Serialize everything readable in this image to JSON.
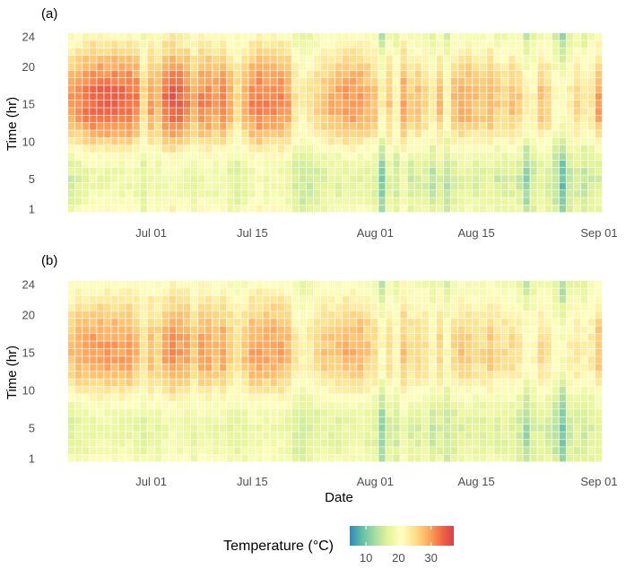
{
  "chart_data": [
    {
      "type": "heatmap",
      "panel_label": "(a)",
      "xlabel": "",
      "ylabel": "Time (hr)",
      "x_start": "2023-06-20",
      "x_end": "2023-09-01",
      "x_ticks": [
        "Jul 01",
        "Jul 15",
        "Aug 01",
        "Aug 15",
        "Sep 01"
      ],
      "x_tick_dates": [
        "2023-07-01",
        "2023-07-15",
        "2023-08-01",
        "2023-08-15",
        "2023-09-01"
      ],
      "y_ticks": [
        1,
        5,
        10,
        15,
        20,
        24
      ],
      "ylim": [
        1,
        24
      ],
      "value": "temperature",
      "profile": {
        "min_hour": 5,
        "max_hour": 15,
        "daily_mean_c": [
          23,
          24,
          25,
          26,
          26,
          26,
          26,
          26,
          26,
          25,
          21,
          24,
          23,
          26,
          27,
          26,
          25,
          23,
          25,
          25,
          24,
          25,
          23,
          21,
          23,
          25,
          26,
          25,
          25,
          25,
          24,
          20,
          19,
          20,
          21,
          22,
          23,
          23,
          24,
          24,
          24,
          23,
          22,
          17,
          22,
          19,
          24,
          21,
          22,
          21,
          19,
          22,
          18,
          22,
          23,
          23,
          22,
          22,
          23,
          21,
          21,
          22,
          21,
          17,
          19,
          22,
          21,
          18,
          15,
          19,
          21,
          19,
          20
        ],
        "daily_range_c": [
          14,
          15,
          15,
          15,
          16,
          16,
          16,
          16,
          15,
          14,
          9,
          12,
          11,
          14,
          15,
          15,
          14,
          12,
          13,
          13,
          12,
          13,
          12,
          9,
          12,
          13,
          13,
          13,
          13,
          13,
          12,
          9,
          8,
          9,
          10,
          11,
          12,
          13,
          13,
          13,
          13,
          12,
          11,
          12,
          10,
          8,
          11,
          11,
          12,
          10,
          10,
          12,
          8,
          12,
          13,
          12,
          11,
          11,
          12,
          11,
          10,
          11,
          11,
          11,
          7,
          11,
          10,
          8,
          12,
          9,
          10,
          9,
          8
        ]
      }
    },
    {
      "type": "heatmap",
      "panel_label": "(b)",
      "xlabel": "Date",
      "ylabel": "Time (hr)",
      "x_start": "2023-06-20",
      "x_end": "2023-09-01",
      "x_ticks": [
        "Jul 01",
        "Jul 15",
        "Aug 01",
        "Aug 15",
        "Sep 01"
      ],
      "x_tick_dates": [
        "2023-07-01",
        "2023-07-15",
        "2023-08-01",
        "2023-08-15",
        "2023-09-01"
      ],
      "y_ticks": [
        1,
        5,
        10,
        15,
        20,
        24
      ],
      "ylim": [
        1,
        24
      ],
      "value": "temperature",
      "profile": {
        "min_hour": 5,
        "max_hour": 15,
        "daily_mean_c": [
          22,
          23,
          23,
          24,
          24,
          24,
          24,
          24,
          24,
          23,
          21,
          23,
          22,
          24,
          25,
          24,
          24,
          22,
          24,
          24,
          23,
          24,
          22,
          21,
          22,
          24,
          24,
          24,
          24,
          24,
          23,
          20,
          19,
          20,
          21,
          22,
          22,
          22,
          23,
          23,
          23,
          22,
          21,
          17,
          21,
          19,
          23,
          21,
          21,
          21,
          19,
          21,
          18,
          21,
          22,
          22,
          21,
          21,
          22,
          21,
          21,
          21,
          20,
          17,
          19,
          21,
          20,
          18,
          15,
          19,
          20,
          19,
          20
        ],
        "daily_range_c": [
          11,
          12,
          12,
          12,
          12,
          12,
          12,
          12,
          12,
          11,
          8,
          10,
          9,
          11,
          12,
          12,
          11,
          10,
          11,
          11,
          10,
          11,
          10,
          8,
          10,
          11,
          11,
          11,
          11,
          11,
          10,
          8,
          7,
          8,
          9,
          10,
          10,
          11,
          11,
          11,
          11,
          10,
          9,
          10,
          9,
          7,
          9,
          9,
          10,
          8,
          8,
          10,
          7,
          10,
          11,
          10,
          9,
          9,
          10,
          9,
          8,
          9,
          9,
          9,
          6,
          9,
          8,
          7,
          10,
          8,
          8,
          8,
          7
        ]
      }
    }
  ],
  "legend": {
    "title": "Temperature (°C)",
    "ticks": [
      10,
      20,
      30
    ],
    "range": [
      5,
      37
    ],
    "colors": [
      "#3288bd",
      "#66c2a5",
      "#abdda4",
      "#e6f598",
      "#ffffbf",
      "#fee08b",
      "#fdae61",
      "#f46d43",
      "#d53e4f"
    ]
  }
}
